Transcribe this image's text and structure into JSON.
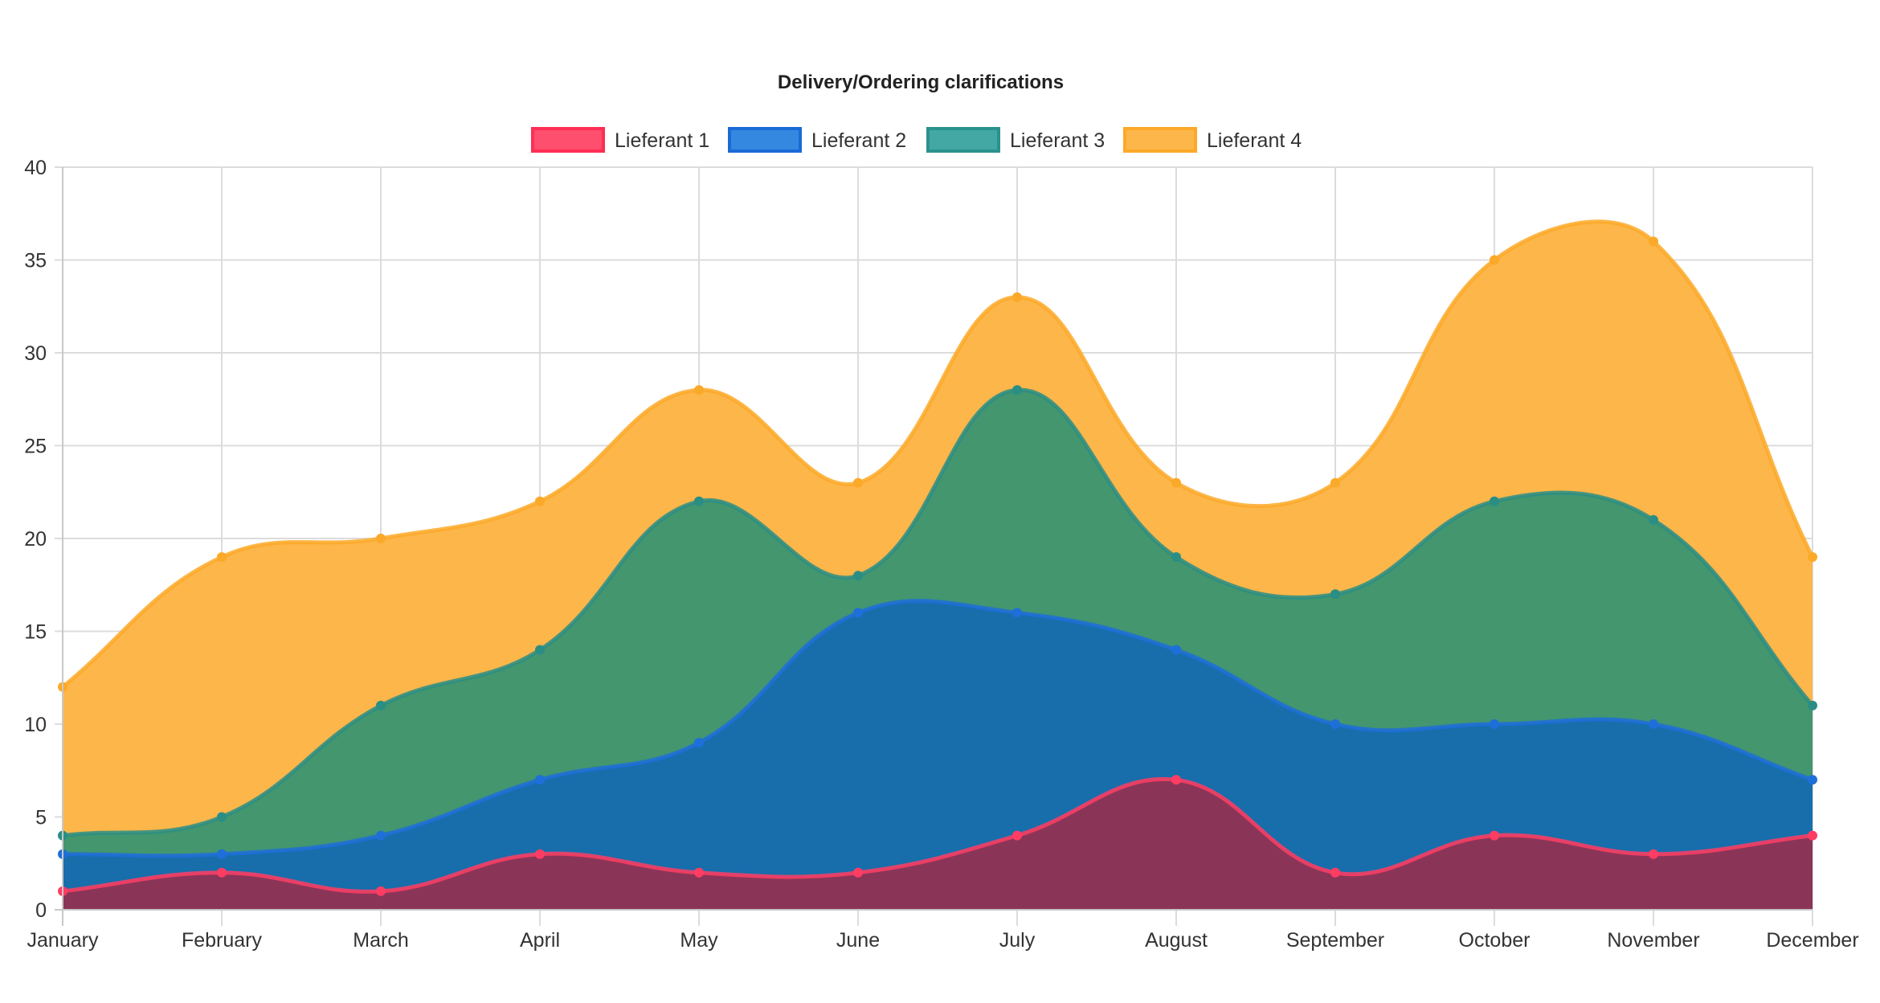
{
  "chart_data": {
    "type": "area",
    "stacked": true,
    "title": "Delivery/Ordering clarifications",
    "xlabel": "",
    "ylabel": "",
    "categories": [
      "January",
      "February",
      "March",
      "April",
      "May",
      "June",
      "July",
      "August",
      "September",
      "October",
      "November",
      "December"
    ],
    "ylim": [
      0,
      40
    ],
    "yticks": [
      0,
      5,
      10,
      15,
      20,
      25,
      30,
      35,
      40
    ],
    "grid": true,
    "legend_position": "top",
    "series": [
      {
        "name": "Lieferant 1",
        "values": [
          1,
          2,
          1,
          3,
          2,
          2,
          4,
          7,
          2,
          4,
          3,
          4
        ],
        "line_color": "#FF3D63",
        "fill_color": "#8A3558",
        "legend_fill": "#FF4F6E",
        "legend_border": "#FF2E55"
      },
      {
        "name": "Lieferant 2",
        "values": [
          2,
          1,
          3,
          4,
          7,
          14,
          12,
          7,
          8,
          6,
          7,
          3
        ],
        "line_color": "#1E6FD9",
        "fill_color": "#176EAB",
        "legend_fill": "#3588E0",
        "legend_border": "#1A6AD6"
      },
      {
        "name": "Lieferant 3",
        "values": [
          1,
          2,
          7,
          7,
          13,
          2,
          12,
          5,
          7,
          12,
          11,
          4
        ],
        "line_color": "#2A8E85",
        "fill_color": "#43966E",
        "legend_fill": "#43A8A3",
        "legend_border": "#2A928C"
      },
      {
        "name": "Lieferant 4",
        "values": [
          8,
          14,
          9,
          8,
          6,
          5,
          5,
          4,
          6,
          13,
          15,
          8
        ],
        "line_color": "#FBA928",
        "fill_color": "#FDB64A",
        "legend_fill": "#FDB64A",
        "legend_border": "#FBA928"
      }
    ]
  }
}
